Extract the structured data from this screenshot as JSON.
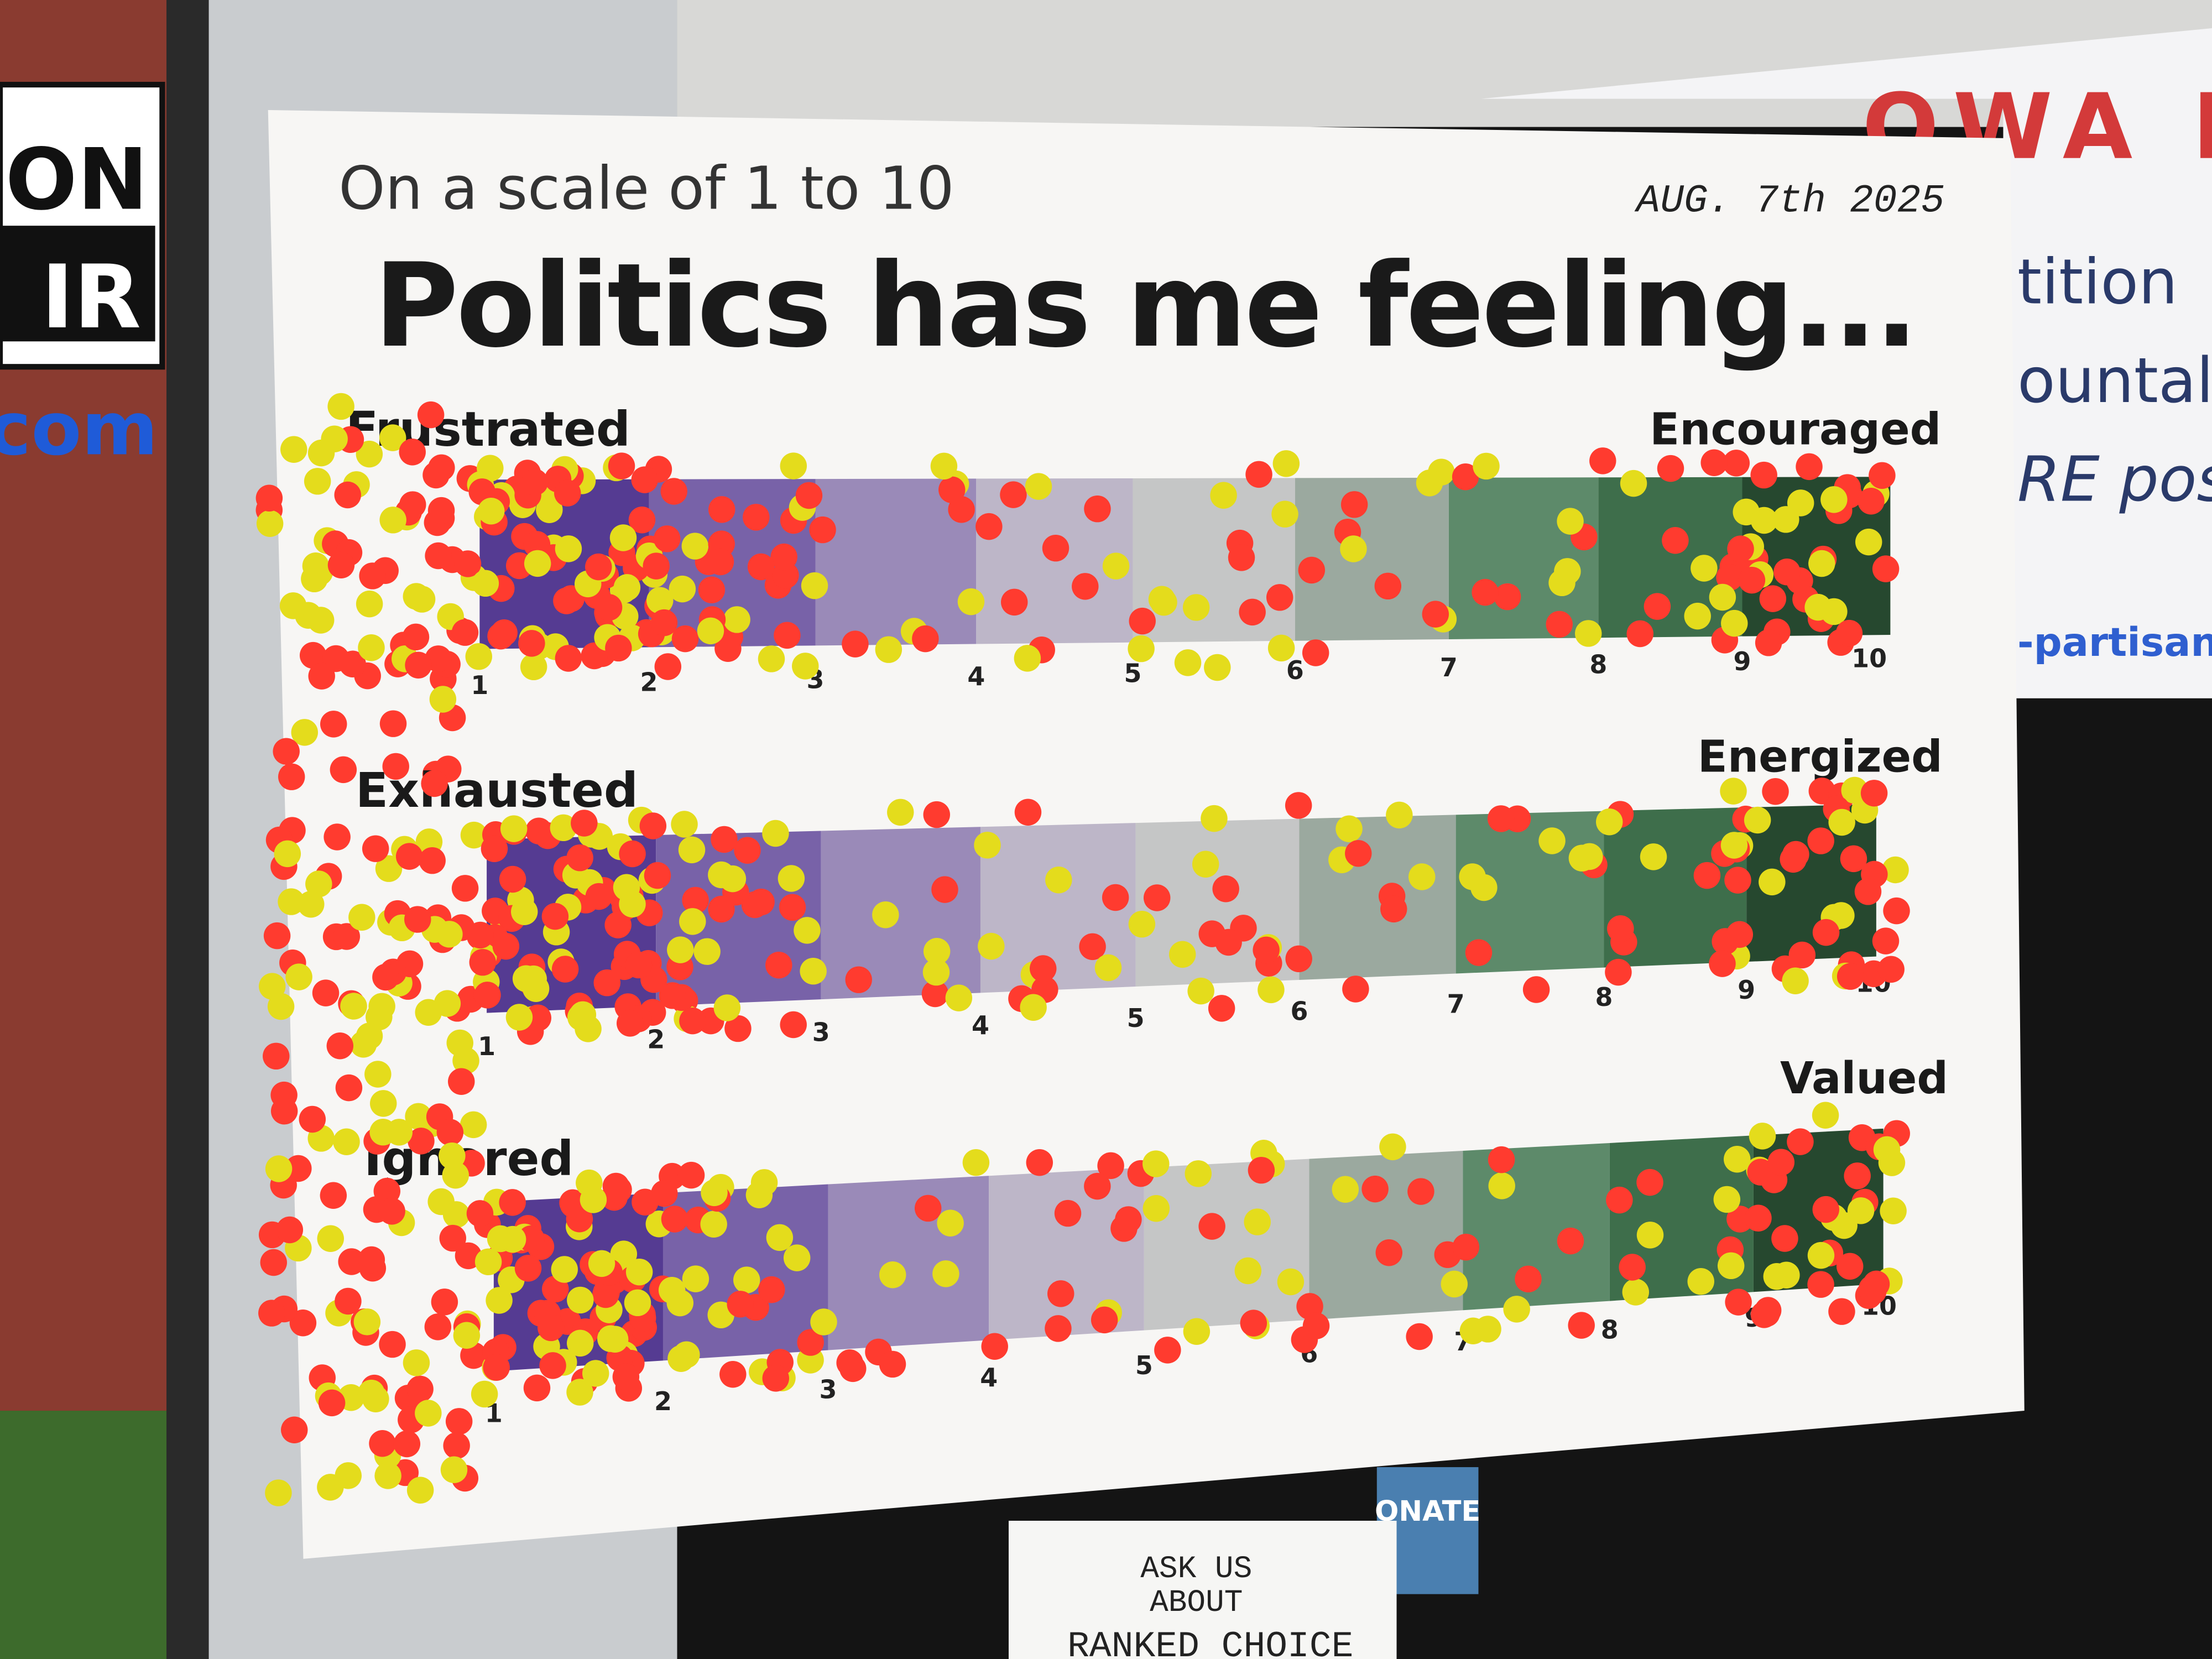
{
  "background": {
    "left_sign": [
      "TION",
      "IR"
    ],
    "left_url": ".com",
    "right_banner": {
      "title": "OWA DESER",
      "lines": [
        "tition",
        "ountal",
        "RE pos",
        "-partisan"
      ]
    },
    "donate": "ONATE",
    "note": [
      "ASK US",
      "ABOUT",
      "RANKED CHOICE"
    ]
  },
  "poster": {
    "subtitle": "On a scale of 1 to 10",
    "date": "AUG. 7th 2025",
    "title": "Politics has me feeling...",
    "scales": [
      {
        "low": "Frustrated",
        "high": "Encouraged"
      },
      {
        "low": "Exhausted",
        "high": "Energized"
      },
      {
        "low": "Ignored",
        "high": "Valued"
      }
    ],
    "ticks": [
      1,
      2,
      3,
      4,
      5,
      6,
      7,
      8,
      9,
      10
    ]
  }
}
